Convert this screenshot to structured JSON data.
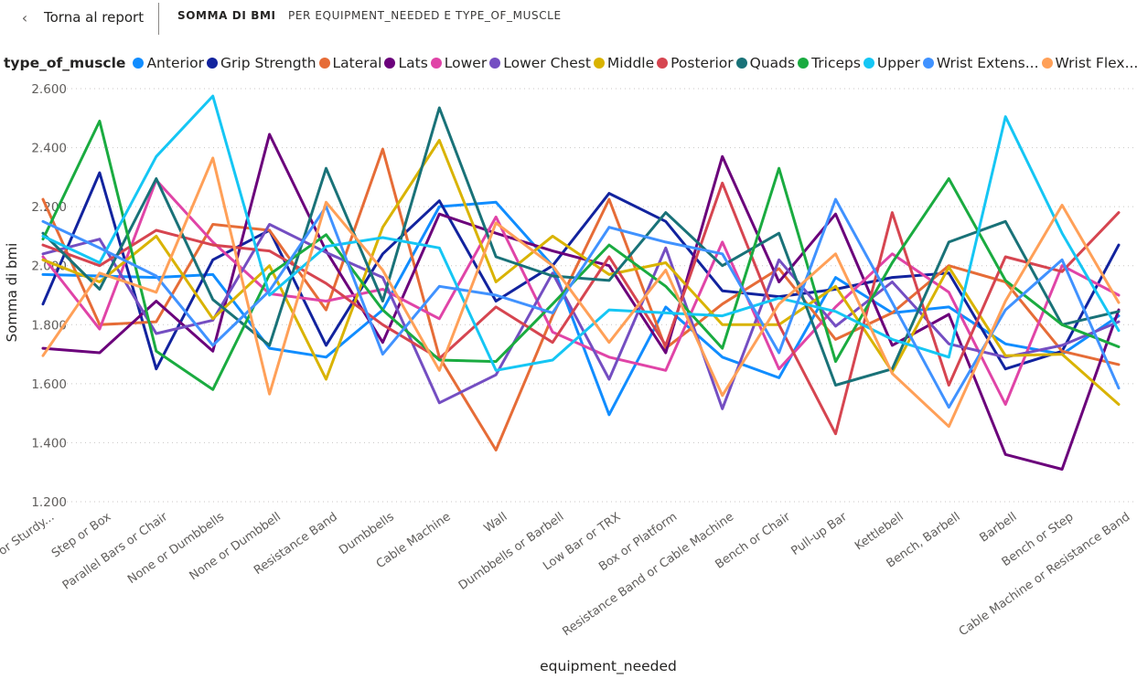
{
  "topbar": {
    "back_label": "Torna al report",
    "title": "SOMMA DI BMI",
    "subtitle": "PER EQUIPMENT_NEEDED E TYPE_OF_MUSCLE"
  },
  "legend": {
    "title": "type_of_muscle",
    "items": [
      {
        "label": "Anterior",
        "color": "#118DFF"
      },
      {
        "label": "Grip Strength",
        "color": "#12239E"
      },
      {
        "label": "Lateral",
        "color": "#E66C37"
      },
      {
        "label": "Lats",
        "color": "#6B007B"
      },
      {
        "label": "Lower",
        "color": "#E044A7"
      },
      {
        "label": "Lower Chest",
        "color": "#744EC2"
      },
      {
        "label": "Middle",
        "color": "#D9B300"
      },
      {
        "label": "Posterior",
        "color": "#D64550"
      },
      {
        "label": "Quads",
        "color": "#197278"
      },
      {
        "label": "Triceps",
        "color": "#1AAB40"
      },
      {
        "label": "Upper",
        "color": "#15C6F4"
      },
      {
        "label": "Wrist Extens...",
        "color": "#4092FF"
      },
      {
        "label": "Wrist Flex...",
        "color": "#FFA058"
      }
    ]
  },
  "chart_data": {
    "type": "line",
    "xlabel": "equipment_needed",
    "ylabel": "Somma di bmi",
    "ylim": [
      1200,
      2600
    ],
    "yticks": [
      1200,
      1400,
      1600,
      1800,
      2000,
      2200,
      2400,
      2600
    ],
    "ytick_labels": [
      "1.200",
      "1.400",
      "1.600",
      "1.800",
      "2.000",
      "2.200",
      "2.400",
      "2.600"
    ],
    "grid": "horizontal dotted",
    "legend_position": "top-left",
    "categories": [
      "Bench or Sturdy...",
      "Step or Box",
      "Parallel Bars or Chair",
      "None or Dumbbells",
      "None or Dumbbell",
      "Resistance Band",
      "Dumbbells",
      "Cable Machine",
      "Wall",
      "Dumbbells or Barbell",
      "Low Bar or TRX",
      "Box or Platform",
      "Resistance Band or Cable Machine",
      "Bench or Chair",
      "Pull-up Bar",
      "Kettlebell",
      "Bench, Barbell",
      "Barbell",
      "Bench or Step",
      "Cable Machine or Resistance Band"
    ],
    "series": [
      {
        "name": "Anterior",
        "values": [
          1970,
          1965,
          1960,
          1970,
          1720,
          1690,
          1850,
          2200,
          2215,
          2000,
          1495,
          1860,
          1690,
          1620,
          1960,
          1840,
          1860,
          1735,
          1700,
          1830
        ]
      },
      {
        "name": "Grip Strength",
        "values": [
          1870,
          2315,
          1650,
          2020,
          2120,
          1730,
          2040,
          2220,
          1880,
          2000,
          2245,
          2150,
          1915,
          1895,
          1920,
          1960,
          1975,
          1650,
          1710,
          2070
        ]
      },
      {
        "name": "Lateral",
        "values": [
          2225,
          1800,
          1810,
          2140,
          2120,
          1850,
          2395,
          1690,
          1375,
          1830,
          2225,
          1720,
          1870,
          1990,
          1750,
          1840,
          2000,
          1945,
          1710,
          1665
        ]
      },
      {
        "name": "Lats",
        "values": [
          1720,
          1705,
          1880,
          1710,
          2445,
          2050,
          1740,
          2175,
          2110,
          2050,
          2000,
          1705,
          2370,
          1945,
          2175,
          1730,
          1835,
          1360,
          1310,
          1850
        ]
      },
      {
        "name": "Lower",
        "values": [
          2030,
          1785,
          2290,
          2080,
          1905,
          1880,
          1920,
          1820,
          2165,
          1775,
          1690,
          1645,
          2080,
          1650,
          1860,
          2040,
          1910,
          1530,
          2000,
          1900
        ]
      },
      {
        "name": "Lower Chest",
        "values": [
          2040,
          2090,
          1770,
          1815,
          2140,
          2045,
          1960,
          1535,
          1630,
          1975,
          1615,
          2060,
          1515,
          2020,
          1795,
          1945,
          1735,
          1690,
          1730,
          1810
        ]
      },
      {
        "name": "Middle",
        "values": [
          2020,
          1945,
          2100,
          1820,
          2000,
          1615,
          2130,
          2425,
          1945,
          2100,
          1970,
          2010,
          1800,
          1800,
          1930,
          1640,
          1995,
          1695,
          1700,
          1530
        ]
      },
      {
        "name": "Posterior",
        "values": [
          2070,
          2000,
          2120,
          2070,
          2050,
          1940,
          1800,
          1685,
          1860,
          1740,
          2030,
          1730,
          2280,
          1800,
          1430,
          2180,
          1595,
          2030,
          1980,
          2180
        ]
      },
      {
        "name": "Quads",
        "values": [
          2110,
          1920,
          2295,
          1885,
          1730,
          2330,
          1880,
          2535,
          2030,
          1965,
          1950,
          2180,
          2000,
          2110,
          1595,
          1650,
          2080,
          2150,
          1800,
          1845
        ]
      },
      {
        "name": "Triceps",
        "values": [
          2090,
          2490,
          1710,
          1580,
          1970,
          2105,
          1850,
          1680,
          1675,
          1870,
          2070,
          1930,
          1720,
          2330,
          1675,
          2010,
          2295,
          1950,
          1800,
          1725
        ]
      },
      {
        "name": "Upper",
        "values": [
          2100,
          2010,
          2370,
          2575,
          1900,
          2065,
          2095,
          2060,
          1645,
          1680,
          1850,
          1840,
          1830,
          1890,
          1845,
          1750,
          1690,
          2505,
          2110,
          1780
        ]
      },
      {
        "name": "Wrist Extens...",
        "values": [
          2150,
          2060,
          1965,
          1730,
          1915,
          2200,
          1700,
          1930,
          1900,
          1840,
          2130,
          2080,
          2040,
          1705,
          2225,
          1875,
          1520,
          1850,
          2020,
          1585
        ]
      },
      {
        "name": "Wrist Flex...",
        "values": [
          1695,
          1975,
          1910,
          2365,
          1565,
          2215,
          1985,
          1645,
          2145,
          2000,
          1740,
          1985,
          1560,
          1870,
          2040,
          1635,
          1455,
          1880,
          2205,
          1875
        ]
      }
    ]
  }
}
